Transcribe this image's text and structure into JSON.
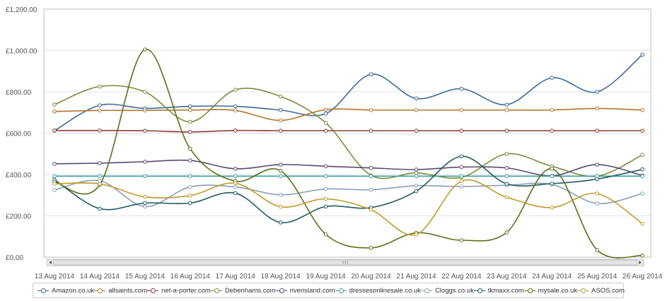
{
  "chart_data": {
    "type": "line",
    "title": "",
    "xlabel": "",
    "ylabel": "",
    "ylim": [
      0,
      1200
    ],
    "y_ticks": [
      "£0.00",
      "£200.00",
      "£400.00",
      "£600.00",
      "£800.00",
      "£1,000.00",
      "£1,200.00"
    ],
    "categories": [
      "13 Aug 2014",
      "14 Aug 2014",
      "15 Aug 2014",
      "16 Aug 2014",
      "17 Aug 2014",
      "18 Aug 2014",
      "19 Aug 2014",
      "20 Aug 2014",
      "21 Aug 2014",
      "22 Aug 2014",
      "23 Aug 2014",
      "24 Aug 2014",
      "25 Aug 2014",
      "26 Aug 2014"
    ],
    "grid": true,
    "legend_position": "bottom",
    "series": [
      {
        "name": "Amazon.co.uk",
        "color": "#3b6a9a",
        "values": [
          612,
          735,
          720,
          730,
          730,
          712,
          695,
          885,
          768,
          815,
          738,
          868,
          800,
          980
        ]
      },
      {
        "name": "allsaints.com",
        "color": "#b3772d",
        "values": [
          705,
          710,
          710,
          712,
          710,
          662,
          714,
          712,
          712,
          712,
          712,
          712,
          720,
          712
        ]
      },
      {
        "name": "net-a-porter.com",
        "color": "#8c3a33",
        "values": [
          613,
          613,
          612,
          606,
          613,
          612,
          612,
          612,
          612,
          612,
          612,
          612,
          612,
          612
        ]
      },
      {
        "name": "Debenhams.com",
        "color": "#7c8c36",
        "values": [
          738,
          826,
          800,
          655,
          810,
          778,
          650,
          396,
          408,
          386,
          500,
          440,
          392,
          495
        ]
      },
      {
        "name": "riverisland.com",
        "color": "#5a4a72",
        "values": [
          452,
          455,
          462,
          468,
          428,
          448,
          440,
          432,
          424,
          436,
          432,
          394,
          448,
          395
        ]
      },
      {
        "name": "dressesonlinesale.co.uk",
        "color": "#3e9ea0",
        "values": [
          392,
          392,
          392,
          392,
          392,
          392,
          392,
          392,
          392,
          392,
          392,
          392,
          392,
          392
        ]
      },
      {
        "name": "Cloggs.co.uk",
        "color": "#8aa0b4",
        "values": [
          325,
          370,
          245,
          340,
          340,
          302,
          330,
          326,
          346,
          342,
          348,
          352,
          260,
          308
        ]
      },
      {
        "name": "tkmaxx.com",
        "color": "#1d5a5e",
        "values": [
          375,
          235,
          262,
          262,
          310,
          168,
          245,
          240,
          320,
          488,
          355,
          356,
          378,
          425
        ]
      },
      {
        "name": "mysale.co.uk",
        "color": "#5b7018",
        "values": [
          365,
          350,
          1005,
          525,
          368,
          418,
          110,
          45,
          118,
          82,
          120,
          428,
          35,
          8
        ]
      },
      {
        "name": "ASOS.com",
        "color": "#c09a2a",
        "values": [
          355,
          355,
          292,
          298,
          358,
          244,
          282,
          230,
          110,
          368,
          290,
          240,
          308,
          162
        ]
      }
    ]
  }
}
